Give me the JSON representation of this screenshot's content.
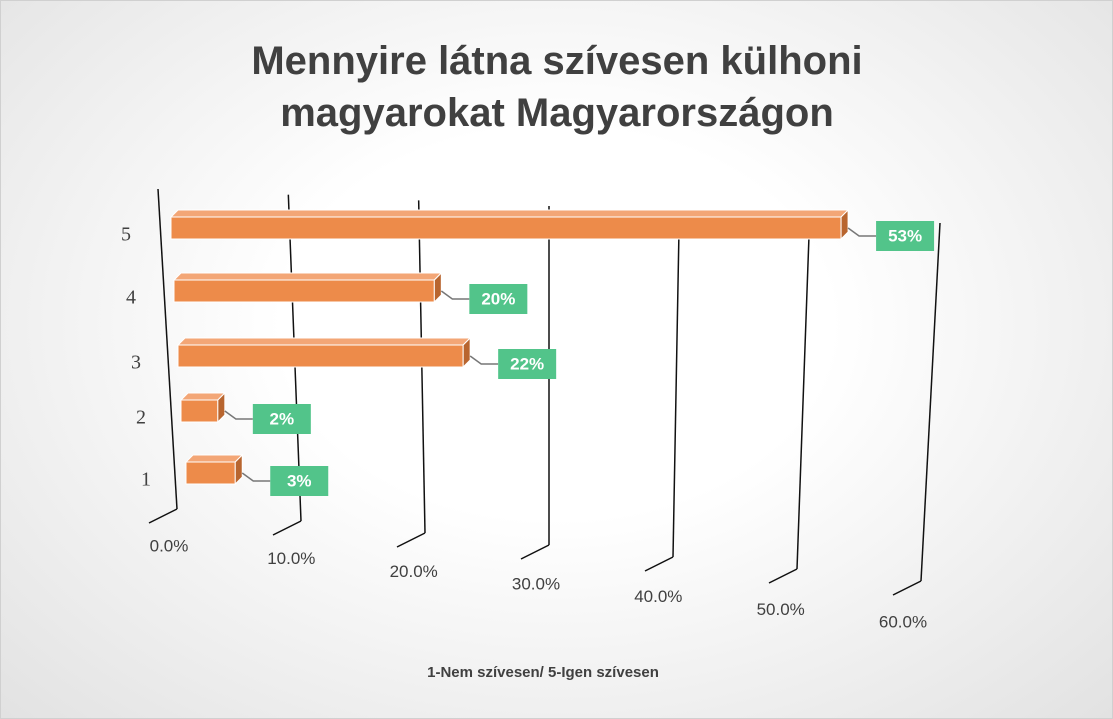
{
  "chart_data": {
    "type": "bar3d",
    "title": "Mennyire látna szívesen külhoni magyarokat Magyarországon",
    "x_axis_label": "1-Nem szívesen/ 5-Igen szívesen",
    "categories": [
      "1",
      "2",
      "3",
      "4",
      "5"
    ],
    "values": [
      3,
      2,
      22,
      20,
      53
    ],
    "value_labels": [
      "3%",
      "2%",
      "22%",
      "20%",
      "53%"
    ],
    "color": "#ed8b4a",
    "label_color": "#52c48a",
    "xlim": [
      0,
      60
    ],
    "xticks": [
      {
        "value": 0,
        "label": "0.0%"
      },
      {
        "value": 10,
        "label": "10.0%"
      },
      {
        "value": 20,
        "label": "20.0%"
      },
      {
        "value": 30,
        "label": "30.0%"
      },
      {
        "value": 40,
        "label": "40.0%"
      },
      {
        "value": 50,
        "label": "50.0%"
      },
      {
        "value": 60,
        "label": "60.0%"
      }
    ],
    "grid": true
  }
}
